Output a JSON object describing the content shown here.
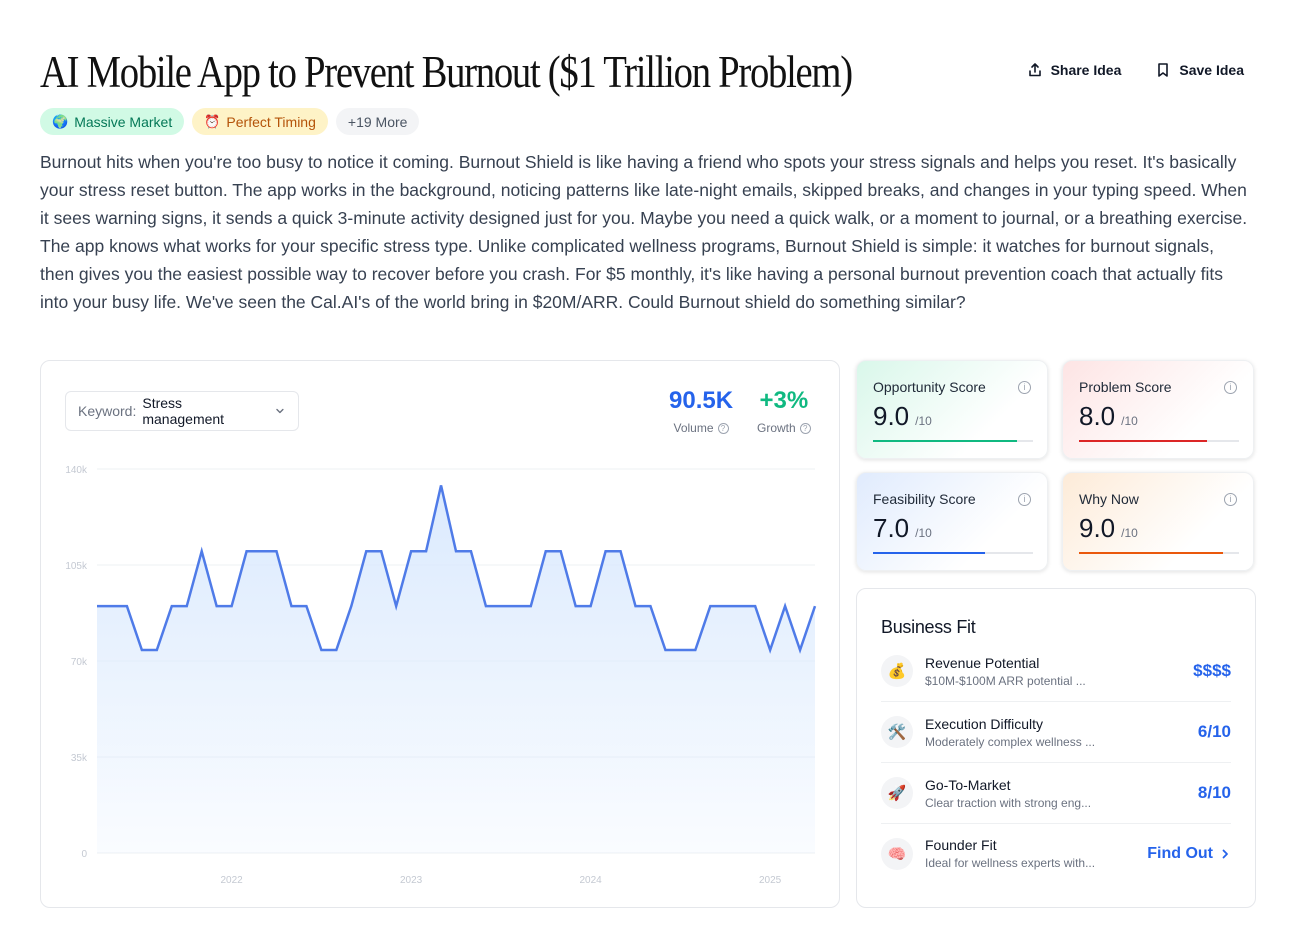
{
  "header": {
    "title": "AI Mobile App to Prevent Burnout ($1 Trillion Problem)",
    "share_label": "Share Idea",
    "save_label": "Save Idea"
  },
  "badges": [
    {
      "icon": "globe-emoji",
      "emoji": "🌍",
      "label": "Massive Market"
    },
    {
      "icon": "alarm-clock-emoji",
      "emoji": "⏰",
      "label": "Perfect Timing"
    },
    {
      "label": "+19 More"
    }
  ],
  "description": "Burnout hits when you're too busy to notice it coming. Burnout Shield is like having a friend who spots your stress signals and helps you reset. It's basically your stress reset button. The app works in the background, noticing patterns like late-night emails, skipped breaks, and changes in your typing speed. When it sees warning signs, it sends a quick 3-minute activity designed just for you. Maybe you need a quick walk, or a moment to journal, or a breathing exercise. The app knows what works for your specific stress type. Unlike complicated wellness programs, Burnout Shield is simple: it watches for burnout signals, then gives you the easiest possible way to recover before you crash. For $5 monthly, it's like having a personal burnout prevention coach that actually fits into your busy life. We've seen the Cal.AI's of the world bring in $20M/ARR. Could Burnout shield do something similar?",
  "keyword": {
    "label": "Keyword:",
    "value": "Stress management"
  },
  "metrics": {
    "volume": {
      "value": "90.5K",
      "label": "Volume",
      "color": "#2563eb"
    },
    "growth": {
      "value": "+3%",
      "label": "Growth",
      "color": "#10b981"
    }
  },
  "chart_data": {
    "type": "area",
    "title": "",
    "xlabel": "",
    "ylabel": "",
    "ylim": [
      0,
      140000
    ],
    "y_ticks": [
      "0",
      "35k",
      "70k",
      "105k",
      "140k"
    ],
    "x_ticks": [
      "2022",
      "2023",
      "2024",
      "2025"
    ],
    "x_tick_index": [
      9,
      21,
      33,
      45
    ],
    "grid": true,
    "legend": "none",
    "line_color": "#4f7be8",
    "fill_color": "#dbeafe",
    "series": [
      {
        "values": [
          90000,
          90000,
          90000,
          74000,
          74000,
          90000,
          90000,
          110000,
          90000,
          90000,
          110000,
          110000,
          110000,
          90000,
          90000,
          74000,
          74000,
          90000,
          110000,
          110000,
          90000,
          110000,
          110000,
          134000,
          110000,
          110000,
          90000,
          90000,
          90000,
          90000,
          110000,
          110000,
          90000,
          90000,
          110000,
          110000,
          90000,
          90000,
          74000,
          74000,
          74000,
          90000,
          90000,
          90000,
          90000,
          74000,
          90000,
          74000,
          90000
        ]
      }
    ]
  },
  "scores": [
    {
      "name": "Opportunity Score",
      "value": "9.0",
      "denominator": "/10",
      "progress": 0.9,
      "color": "#10b981",
      "bg_from": "#d9f7ea"
    },
    {
      "name": "Problem Score",
      "value": "8.0",
      "denominator": "/10",
      "progress": 0.8,
      "color": "#dc2626",
      "bg_from": "#fde4e4"
    },
    {
      "name": "Feasibility Score",
      "value": "7.0",
      "denominator": "/10",
      "progress": 0.7,
      "color": "#2563eb",
      "bg_from": "#e0ebfd"
    },
    {
      "name": "Why Now",
      "value": "9.0",
      "denominator": "/10",
      "progress": 0.9,
      "color": "#ea580c",
      "bg_from": "#fdebd8"
    }
  ],
  "business_fit": {
    "title": "Business Fit",
    "rows": [
      {
        "icon": "money-bag-emoji",
        "emoji": "💰",
        "name": "Revenue Potential",
        "sub": "$10M-$100M ARR potential ...",
        "value": "$$$$"
      },
      {
        "icon": "hammer-wrench-emoji",
        "emoji": "🛠️",
        "name": "Execution Difficulty",
        "sub": "Moderately complex wellness ...",
        "value": "6/10"
      },
      {
        "icon": "rocket-emoji",
        "emoji": "🚀",
        "name": "Go-To-Market",
        "sub": "Clear traction with strong eng...",
        "value": "8/10"
      },
      {
        "icon": "brain-emoji",
        "emoji": "🧠",
        "name": "Founder Fit",
        "sub": "Ideal for wellness experts with...",
        "value": "Find Out"
      }
    ]
  }
}
